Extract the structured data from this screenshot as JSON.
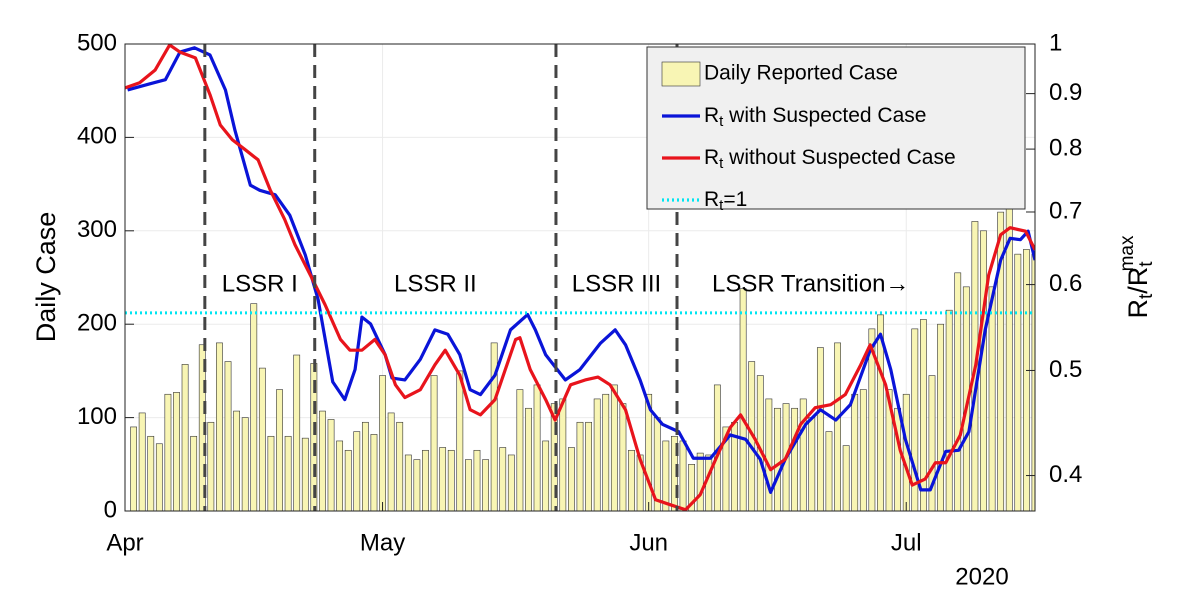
{
  "chart_data": {
    "type": "combo",
    "ylabel": "Daily Case",
    "y2label": "Rt/Rtmax",
    "year_label": "2020",
    "xlim": [
      0,
      106
    ],
    "xticks": [
      {
        "value": 0,
        "label": "Apr"
      },
      {
        "value": 30,
        "label": "May"
      },
      {
        "value": 61,
        "label": "Jun"
      },
      {
        "value": 91,
        "label": "Jul"
      }
    ],
    "ylim": [
      0,
      500
    ],
    "yticks": [
      0,
      100,
      200,
      300,
      400,
      500
    ],
    "y2lim": [
      0.371,
      1
    ],
    "y2ticks": [
      0.4,
      0.5,
      0.6,
      0.7,
      0.8,
      0.9,
      1
    ],
    "y2scale": "log",
    "grid": true,
    "legend": "upper right",
    "phase_boundaries": [
      9.3,
      22.1,
      50.2,
      64.3
    ],
    "phase_labels": [
      "LSSR I",
      "LSSR II",
      "LSSR III",
      "LSSR Transition→"
    ],
    "series": [
      {
        "name": "Daily Reported Case",
        "type": "bar",
        "axis": "y",
        "color": "#f8f5b4",
        "x": [
          1,
          2,
          3,
          4,
          5,
          6,
          7,
          8,
          9,
          10,
          11,
          12,
          13,
          14,
          15,
          16,
          17,
          18,
          19,
          20,
          21,
          22,
          23,
          24,
          25,
          26,
          27,
          28,
          29,
          30,
          31,
          32,
          33,
          34,
          35,
          36,
          37,
          38,
          39,
          40,
          41,
          42,
          43,
          44,
          45,
          46,
          47,
          48,
          49,
          50,
          51,
          52,
          53,
          54,
          55,
          56,
          57,
          58,
          59,
          60,
          61,
          62,
          63,
          64,
          65,
          66,
          67,
          68,
          69,
          70,
          71,
          72,
          73,
          74,
          75,
          76,
          77,
          78,
          79,
          80,
          81,
          82,
          83,
          84,
          85,
          86,
          87,
          88,
          89,
          90,
          91,
          92,
          93,
          94,
          95,
          96,
          97,
          98,
          99,
          100,
          101,
          102,
          103,
          104,
          105,
          106
        ],
        "values": [
          90,
          105,
          80,
          72,
          125,
          127,
          157,
          80,
          178,
          95,
          180,
          160,
          107,
          100,
          222,
          153,
          80,
          130,
          80,
          167,
          78,
          158,
          107,
          98,
          75,
          65,
          85,
          95,
          82,
          145,
          105,
          95,
          60,
          55,
          65,
          145,
          68,
          65,
          150,
          55,
          65,
          55,
          180,
          68,
          60,
          130,
          110,
          135,
          75,
          115,
          120,
          68,
          95,
          95,
          120,
          125,
          135,
          115,
          65,
          60,
          125,
          100,
          75,
          80,
          75,
          50,
          62,
          60,
          135,
          90,
          95,
          238,
          160,
          145,
          120,
          110,
          115,
          110,
          120,
          100,
          175,
          85,
          180,
          70,
          125,
          130,
          195,
          210,
          130,
          110,
          125,
          195,
          205,
          145,
          200,
          215,
          255,
          240,
          310,
          300,
          240,
          320,
          335,
          275,
          280,
          275
        ]
      },
      {
        "name": "Rt with Suspected Case",
        "type": "line",
        "axis": "y2",
        "color": "#0a14d8",
        "x": [
          0.3,
          2.9,
          4.7,
          6.4,
          8.1,
          9.9,
          11.7,
          12.8,
          14.6,
          15.7,
          17.5,
          19.2,
          21.0,
          22.5,
          24.2,
          25.6,
          26.8,
          27.6,
          28.6,
          30.3,
          31.1,
          32.6,
          34.4,
          36.1,
          37.6,
          39.0,
          40.2,
          41.4,
          43.1,
          44.9,
          46.9,
          47.8,
          49.0,
          51.3,
          53.0,
          55.4,
          57.1,
          58.3,
          60.0,
          61.2,
          62.6,
          64.5,
          66.2,
          68.2,
          70.5,
          72.3,
          74.0,
          75.2,
          76.9,
          79.3,
          81.0,
          82.8,
          84.5,
          86.8,
          88.0,
          89.2,
          90.9,
          92.7,
          93.8,
          95.6,
          97.1,
          98.3,
          100.2,
          102.0,
          103.1,
          104.3,
          105.2,
          106
        ],
        "values": [
          0.907,
          0.919,
          0.927,
          0.983,
          0.992,
          0.977,
          0.907,
          0.833,
          0.741,
          0.733,
          0.726,
          0.695,
          0.639,
          0.581,
          0.488,
          0.47,
          0.501,
          0.56,
          0.552,
          0.517,
          0.492,
          0.49,
          0.512,
          0.545,
          0.54,
          0.517,
          0.48,
          0.475,
          0.495,
          0.545,
          0.563,
          0.545,
          0.517,
          0.49,
          0.501,
          0.53,
          0.545,
          0.528,
          0.49,
          0.46,
          0.446,
          0.439,
          0.415,
          0.415,
          0.436,
          0.432,
          0.414,
          0.386,
          0.414,
          0.446,
          0.46,
          0.45,
          0.465,
          0.522,
          0.54,
          0.501,
          0.432,
          0.388,
          0.388,
          0.421,
          0.422,
          0.439,
          0.545,
          0.632,
          0.662,
          0.66,
          0.672,
          0.632
        ]
      },
      {
        "name": "Rt without Suspected Case",
        "type": "line",
        "axis": "y2",
        "color": "#e8141c",
        "x": [
          0,
          1.7,
          3.5,
          5.2,
          6.4,
          8.2,
          9.9,
          11.1,
          12.5,
          14.0,
          15.5,
          16.9,
          18.6,
          19.8,
          21.6,
          23.3,
          25.1,
          26.2,
          27.6,
          29.1,
          30.3,
          31.5,
          32.6,
          34.4,
          36.1,
          37.3,
          39.0,
          40.2,
          41.4,
          43.1,
          44.3,
          45.5,
          46.0,
          47.2,
          49.0,
          50.1,
          51.9,
          53.6,
          55.1,
          56.5,
          58.3,
          60.0,
          61.8,
          63.5,
          65.3,
          67.0,
          68.8,
          70.5,
          71.7,
          73.4,
          75.2,
          76.9,
          78.7,
          80.4,
          82.2,
          83.9,
          85.7,
          86.8,
          88.6,
          90.3,
          91.7,
          93.2,
          94.4,
          95.6,
          97.3,
          99.1,
          100.6,
          102.0,
          103.1,
          104.9,
          106
        ],
        "values": [
          0.911,
          0.921,
          0.946,
          0.998,
          0.983,
          0.971,
          0.898,
          0.842,
          0.816,
          0.799,
          0.782,
          0.734,
          0.689,
          0.653,
          0.612,
          0.575,
          0.534,
          0.522,
          0.522,
          0.534,
          0.517,
          0.485,
          0.472,
          0.48,
          0.506,
          0.522,
          0.495,
          0.46,
          0.455,
          0.47,
          0.501,
          0.534,
          0.536,
          0.501,
          0.47,
          0.45,
          0.485,
          0.49,
          0.493,
          0.485,
          0.46,
          0.414,
          0.38,
          0.376,
          0.372,
          0.384,
          0.414,
          0.443,
          0.455,
          0.432,
          0.405,
          0.414,
          0.446,
          0.462,
          0.465,
          0.475,
          0.506,
          0.528,
          0.485,
          0.422,
          0.392,
          0.397,
          0.411,
          0.411,
          0.436,
          0.506,
          0.612,
          0.667,
          0.677,
          0.672,
          0.646
        ]
      },
      {
        "name": "Rt=1",
        "type": "hline",
        "axis": "y2",
        "color": "#00e5f0",
        "value": 0.565
      }
    ]
  }
}
